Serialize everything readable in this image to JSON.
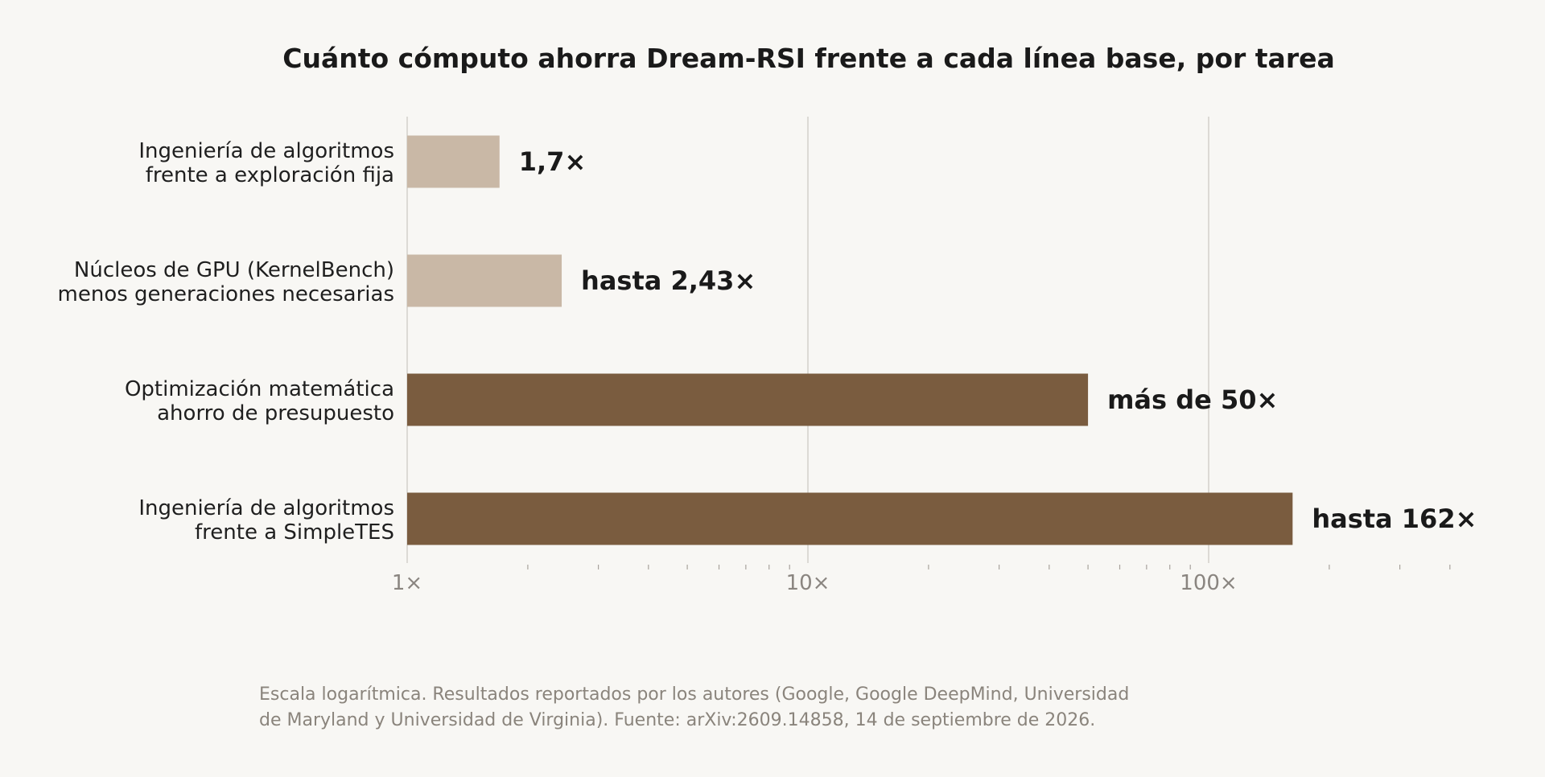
{
  "chart_data": {
    "type": "bar",
    "orientation": "horizontal",
    "title": "Cuánto cómputo ahorra Dream-RSI frente a cada línea base, por tarea",
    "x_scale": "log",
    "xlim": [
      1,
      450
    ],
    "x_ticks": [
      {
        "value": 1,
        "label": "1×"
      },
      {
        "value": 10,
        "label": "10×"
      },
      {
        "value": 100,
        "label": "100×"
      }
    ],
    "grid": "vertical major gridlines",
    "categories": [
      [
        "Ingeniería de algoritmos",
        "frente a exploración fija"
      ],
      [
        "Núcleos de GPU (KernelBench)",
        "menos generaciones necesarias"
      ],
      [
        "Optimización matemática",
        "ahorro de presupuesto"
      ],
      [
        "Ingeniería de algoritmos",
        "frente a SimpleTES"
      ]
    ],
    "values": [
      1.7,
      2.43,
      50,
      162
    ],
    "value_labels": [
      "1,7×",
      "hasta 2,43×",
      "más de 50×",
      "hasta 162×"
    ],
    "colors": [
      "#c9b8a6",
      "#c9b8a6",
      "#7a5c3f",
      "#7a5c3f"
    ],
    "gridline_color": "#dcdad5",
    "footnote": [
      "Escala logarítmica. Resultados reportados por los autores (Google, Google DeepMind, Universidad",
      "de Maryland y Universidad de Virginia). Fuente: arXiv:2609.14858, 14 de septiembre de 2026."
    ]
  }
}
